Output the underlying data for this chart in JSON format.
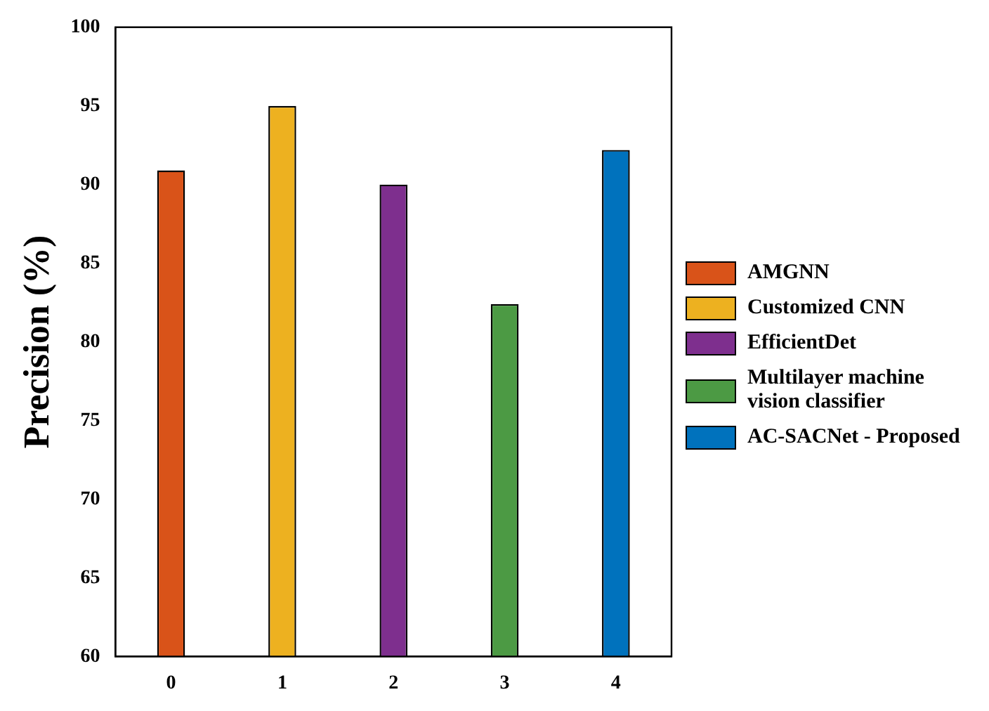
{
  "chart_data": {
    "type": "bar",
    "ylabel": "Precision (%)",
    "categories": [
      "0",
      "1",
      "2",
      "3",
      "4"
    ],
    "series": [
      {
        "name": "AMGNN",
        "color": "#d95319",
        "values": [
          90.9,
          null,
          null,
          null,
          null
        ]
      },
      {
        "name": "Customized CNN",
        "color": "#edb120",
        "values": [
          null,
          95,
          null,
          null,
          null
        ]
      },
      {
        "name": "EfficientDet",
        "color": "#7e2f8e",
        "values": [
          null,
          null,
          90,
          null,
          null
        ]
      },
      {
        "name": "Multilayer machine vision classifier",
        "color": "#4c9a44",
        "values": [
          null,
          null,
          null,
          82.4,
          null
        ]
      },
      {
        "name": "AC-SACNet - Proposed",
        "color": "#0072bd",
        "values": [
          null,
          null,
          null,
          null,
          92.2
        ]
      }
    ],
    "ylim": [
      60,
      100
    ],
    "yticks": [
      60,
      65,
      70,
      75,
      80,
      85,
      90,
      95,
      100
    ],
    "grid": false,
    "legend": "right"
  }
}
